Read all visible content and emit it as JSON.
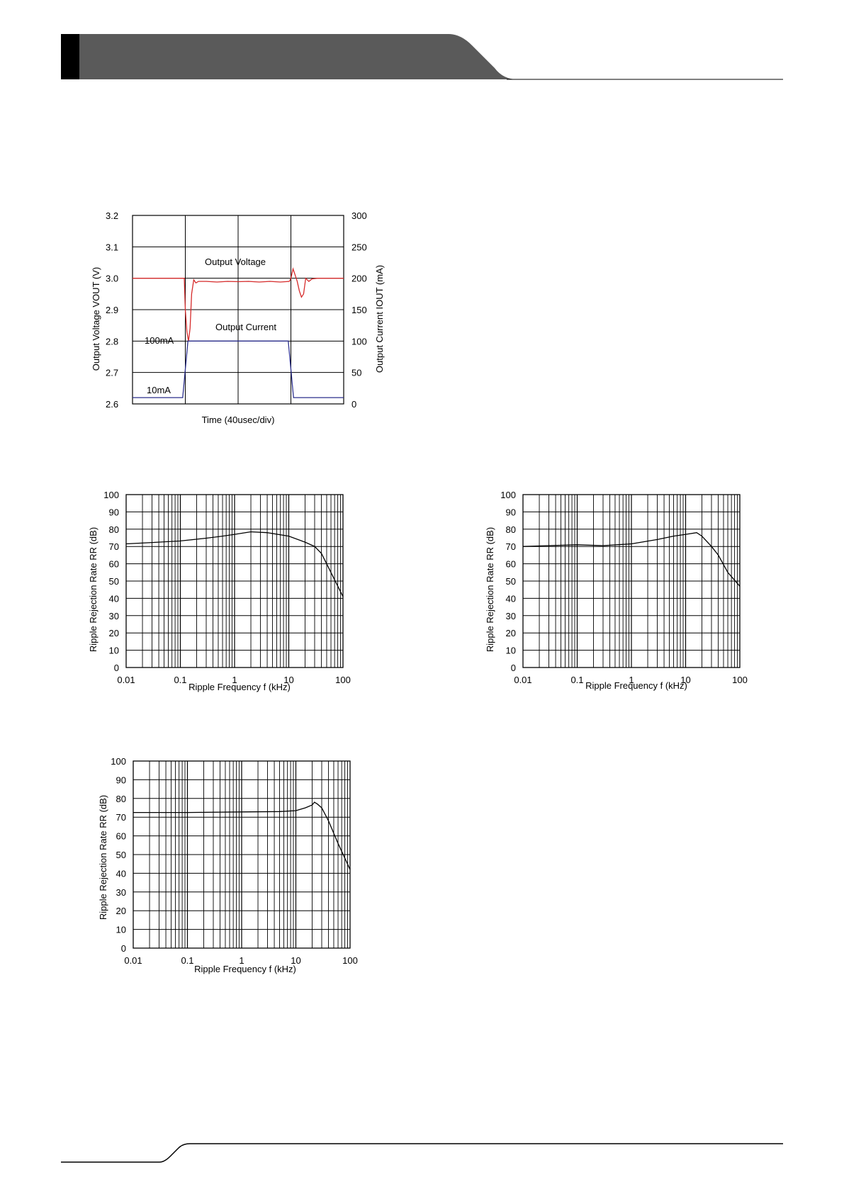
{
  "colors": {
    "header_band": "#5a5a5a",
    "header_tab": "#000000",
    "voltage_trace": "#d62b2b",
    "current_trace": "#2b2f8c",
    "grid": "#000000"
  },
  "chart_data": [
    {
      "id": "load-transient",
      "type": "line",
      "title": "",
      "xlabel": "Time (40usec/div)",
      "ylabel": "Output Voltage VOUT (V)",
      "ylabel_right": "Output Current IOUT (mA)",
      "ylim": [
        2.6,
        3.2
      ],
      "ylim_right": [
        0,
        300
      ],
      "yticks": [
        "3.2",
        "3.1",
        "3.0",
        "2.9",
        "2.8",
        "2.7",
        "2.6"
      ],
      "yticks_right": [
        "300",
        "250",
        "200",
        "150",
        "100",
        "50",
        "0"
      ],
      "xlim": [
        0,
        4
      ],
      "x_divisions": 4,
      "grid": true,
      "annotations": [
        "Output Voltage",
        "Output Current",
        "100mA",
        "10mA"
      ],
      "series": [
        {
          "name": "Output Voltage",
          "axis": "left",
          "x": [
            0,
            0.98,
            1.0,
            1.03,
            1.06,
            1.09,
            1.12,
            1.16,
            1.2,
            1.25,
            1.4,
            1.6,
            1.8,
            2.0,
            2.2,
            2.4,
            2.6,
            2.8,
            2.97,
            3.0,
            3.04,
            3.08,
            3.12,
            3.16,
            3.2,
            3.24,
            3.28,
            3.34,
            3.4,
            3.5,
            3.7,
            4.0
          ],
          "y": [
            3.0,
            3.0,
            2.9,
            2.83,
            2.8,
            2.84,
            2.95,
            2.995,
            2.985,
            2.99,
            2.99,
            2.988,
            2.99,
            2.989,
            2.99,
            2.988,
            2.99,
            2.988,
            2.99,
            3.0,
            3.03,
            3.01,
            2.99,
            2.96,
            2.94,
            2.95,
            3.0,
            2.99,
            2.998,
            3.0,
            3.0,
            3.0
          ]
        },
        {
          "name": "Output Current",
          "axis": "right",
          "x": [
            0,
            0.95,
            1.05,
            2.95,
            3.05,
            4.0
          ],
          "y": [
            10,
            10,
            100,
            100,
            10,
            10
          ]
        }
      ]
    },
    {
      "id": "ripple-rejection-1",
      "type": "line",
      "title": "",
      "xlabel": "Ripple Frequency f (kHz)",
      "ylabel": "Ripple Rejection Rate RR (dB)",
      "xscale": "log",
      "xlim": [
        0.01,
        100
      ],
      "ylim": [
        0,
        100
      ],
      "xticks": [
        "0.01",
        "0.1",
        "1",
        "10",
        "100"
      ],
      "yticks": [
        "100",
        "90",
        "80",
        "70",
        "60",
        "50",
        "40",
        "30",
        "20",
        "10",
        "0"
      ],
      "grid": true,
      "series": [
        {
          "x": [
            0.01,
            0.03,
            0.1,
            0.3,
            0.6,
            1,
            2,
            4,
            10,
            20,
            30,
            40,
            60,
            100
          ],
          "y": [
            71.5,
            72.3,
            73.2,
            74.8,
            76,
            77,
            78.5,
            78,
            76,
            72.5,
            70,
            66,
            55,
            41
          ]
        }
      ]
    },
    {
      "id": "ripple-rejection-2",
      "type": "line",
      "title": "",
      "xlabel": "Ripple Frequency f (kHz)",
      "ylabel": "Ripple Rejection Rate RR (dB)",
      "xscale": "log",
      "xlim": [
        0.01,
        100
      ],
      "ylim": [
        0,
        100
      ],
      "xticks": [
        "0.01",
        "0.1",
        "1",
        "10",
        "100"
      ],
      "yticks": [
        "100",
        "90",
        "80",
        "70",
        "60",
        "50",
        "40",
        "30",
        "20",
        "10",
        "0"
      ],
      "grid": true,
      "series": [
        {
          "x": [
            0.01,
            0.03,
            0.1,
            0.3,
            1,
            3,
            6,
            10,
            16,
            20,
            30,
            40,
            60,
            100
          ],
          "y": [
            70,
            70.5,
            71,
            70.5,
            71.5,
            74,
            76,
            77,
            78,
            76,
            70,
            65,
            55,
            47
          ]
        }
      ]
    },
    {
      "id": "ripple-rejection-3",
      "type": "line",
      "title": "",
      "xlabel": "Ripple Frequency f (kHz)",
      "ylabel": "Ripple Rejection Rate RR (dB)",
      "xscale": "log",
      "xlim": [
        0.01,
        100
      ],
      "ylim": [
        0,
        100
      ],
      "xticks": [
        "0.01",
        "0.1",
        "1",
        "10",
        "100"
      ],
      "yticks": [
        "100",
        "90",
        "80",
        "70",
        "60",
        "50",
        "40",
        "30",
        "20",
        "10",
        "0"
      ],
      "grid": true,
      "series": [
        {
          "x": [
            0.01,
            0.1,
            1,
            5,
            10,
            15,
            20,
            22,
            25,
            30,
            40,
            60,
            100
          ],
          "y": [
            72.5,
            72.5,
            72.8,
            73,
            73.5,
            75,
            76.5,
            78,
            77,
            75,
            68,
            56,
            42
          ]
        }
      ]
    }
  ]
}
